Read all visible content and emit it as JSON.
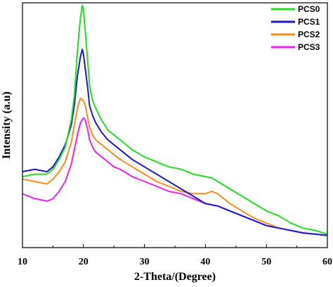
{
  "chart_data": {
    "type": "line",
    "xlabel": "2-Theta/(Degree)",
    "ylabel": "Intensity (a.u)",
    "xlim": [
      10,
      60
    ],
    "ylim": [
      0,
      100
    ],
    "xticks": [
      "10",
      "20",
      "30",
      "40",
      "50",
      "60"
    ],
    "y_tick_labels_shown": false,
    "grid": false,
    "legend_position": "top-right",
    "series": [
      {
        "name": "PCS0",
        "color": "#22dd22",
        "x": [
          10,
          12,
          14,
          15,
          16,
          17,
          18,
          18.5,
          19,
          19.5,
          19.8,
          20,
          20.3,
          20.7,
          21,
          21.5,
          22,
          23,
          24,
          25,
          26,
          28,
          30,
          32,
          34,
          36,
          38,
          40,
          41,
          42,
          44,
          46,
          48,
          50,
          52,
          54,
          56,
          58,
          60
        ],
        "y": [
          29,
          30,
          30,
          32,
          36,
          41,
          52,
          62,
          80,
          94,
          99,
          97,
          88,
          76,
          66,
          60,
          57,
          52,
          48,
          46,
          44,
          40,
          37,
          35,
          33,
          32,
          30,
          29,
          28.5,
          27,
          24,
          21,
          18,
          15,
          13,
          10,
          8,
          7,
          5.5
        ]
      },
      {
        "name": "PCS1",
        "color": "#1a1acc",
        "x": [
          10,
          12,
          14,
          15,
          16,
          17,
          18,
          18.5,
          19,
          19.5,
          19.8,
          20,
          20.3,
          20.7,
          21,
          21.5,
          22,
          23,
          24,
          25,
          26,
          28,
          30,
          32,
          34,
          36,
          38,
          40,
          41,
          42,
          44,
          46,
          48,
          50,
          52,
          54,
          56,
          58,
          60
        ],
        "y": [
          31,
          32,
          31,
          33,
          37,
          42,
          50,
          58,
          70,
          78,
          81,
          79,
          73,
          65,
          58,
          54,
          51,
          47,
          44,
          42,
          40,
          36,
          33,
          30,
          27,
          24,
          21,
          18,
          17.5,
          17,
          15,
          13,
          11,
          9,
          8,
          7,
          6,
          5.5,
          5
        ]
      },
      {
        "name": "PCS2",
        "color": "#ff8c1a",
        "x": [
          10,
          12,
          14,
          15,
          16,
          17,
          18,
          18.5,
          19,
          19.5,
          20,
          20.3,
          20.7,
          21,
          21.5,
          22,
          23,
          24,
          25,
          26,
          28,
          30,
          32,
          34,
          36,
          38,
          40,
          41,
          42,
          43,
          44,
          46,
          48,
          50,
          52,
          54,
          56,
          58,
          60
        ],
        "y": [
          28,
          27,
          26,
          28,
          31,
          35,
          43,
          50,
          57,
          61,
          60,
          58,
          53,
          49,
          46,
          44,
          42,
          40,
          38,
          36,
          33,
          30,
          27,
          25,
          23,
          22,
          22,
          23,
          22,
          20,
          18,
          15,
          12,
          10,
          8,
          7,
          6,
          5.5,
          5
        ]
      },
      {
        "name": "PCS3",
        "color": "#ee22ee",
        "x": [
          10,
          11,
          12,
          14,
          15,
          16,
          17,
          18,
          18.5,
          19,
          19.5,
          20,
          20.3,
          20.7,
          21,
          21.5,
          22,
          23,
          24,
          25,
          26,
          28,
          30,
          32,
          34,
          36,
          38,
          40,
          42,
          44,
          46,
          48,
          50,
          52,
          54,
          56,
          58,
          60
        ],
        "y": [
          22,
          21,
          20,
          19,
          20,
          23,
          27,
          34,
          40,
          46,
          51,
          53,
          52,
          48,
          44,
          41,
          39,
          37,
          35,
          33,
          32,
          29,
          27,
          25,
          23,
          22,
          20,
          18,
          17,
          15,
          13,
          11,
          9,
          8,
          7,
          6,
          5.5,
          5
        ]
      }
    ]
  }
}
